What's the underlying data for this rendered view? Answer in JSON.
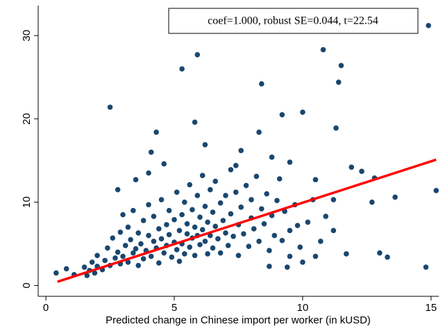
{
  "chart_data": {
    "type": "scatter",
    "xlabel": "Predicted change in Chinese import per worker (in kUSD)",
    "annotation": "coef=1.000, robust SE=0.044, t=22.54",
    "xlim": [
      -0.3,
      15.3
    ],
    "ylim": [
      -1.3,
      33.6
    ],
    "xticks": [
      0,
      5,
      10,
      15
    ],
    "yticks": [
      0,
      10,
      20,
      30
    ],
    "series": [
      {
        "type": "scatter",
        "color": "#1a476f",
        "x": [
          2.5,
          5.3,
          5.9,
          10.8,
          14.9,
          15.2,
          14.8,
          8.4,
          11.5,
          11.4,
          9.2,
          10.0,
          11.3,
          5.8,
          4.3,
          4.1,
          8.3,
          11.9,
          12.3,
          12.7,
          13.6,
          12.8,
          13.3,
          13.0,
          11.7,
          10.5,
          9.5,
          10.0,
          9.4,
          8.7,
          0.4,
          0.8,
          1.1,
          1.6,
          1.9,
          2.8,
          3.5,
          4.0,
          4.6,
          6.2,
          7.6,
          7.4,
          8.8,
          9.5,
          10.5,
          11.2,
          10.9,
          10.7,
          11.2,
          9.8,
          1.5,
          1.7,
          1.8,
          2.0,
          2.0,
          2.2,
          2.3,
          2.4,
          2.5,
          2.6,
          2.7,
          2.8,
          2.9,
          2.9,
          3.0,
          3.0,
          3.1,
          3.2,
          3.2,
          3.3,
          3.4,
          3.4,
          3.5,
          3.6,
          3.6,
          3.7,
          3.8,
          3.8,
          3.9,
          4.0,
          4.0,
          4.1,
          4.2,
          4.2,
          4.3,
          4.4,
          4.4,
          4.5,
          4.5,
          4.6,
          4.7,
          4.7,
          4.8,
          4.8,
          4.9,
          5.0,
          5.0,
          5.1,
          5.1,
          5.2,
          5.2,
          5.3,
          5.3,
          5.4,
          5.4,
          5.5,
          5.5,
          5.6,
          5.6,
          5.7,
          5.7,
          5.8,
          5.8,
          5.9,
          5.9,
          6.0,
          6.0,
          6.1,
          6.1,
          6.2,
          6.2,
          6.3,
          6.3,
          6.4,
          6.4,
          6.5,
          6.5,
          6.6,
          6.6,
          6.7,
          6.8,
          6.8,
          6.9,
          7.0,
          7.0,
          7.1,
          7.2,
          7.2,
          7.3,
          7.4,
          7.5,
          7.5,
          7.6,
          7.7,
          7.8,
          7.9,
          8.0,
          8.0,
          8.1,
          8.2,
          8.3,
          8.4,
          8.5,
          8.6,
          8.7,
          8.8,
          8.9,
          9.0,
          9.1,
          9.2,
          9.3,
          9.5,
          9.7,
          9.9,
          10.2,
          10.4
        ],
        "values": [
          21.4,
          26,
          27.7,
          28.3,
          31.2,
          11.4,
          2.2,
          24.2,
          26.4,
          24.4,
          20.5,
          20.8,
          18.9,
          19.6,
          18.4,
          16,
          18.4,
          14.2,
          13.7,
          10,
          10.6,
          12.9,
          3.4,
          3.9,
          3.8,
          3.5,
          3.5,
          2.8,
          2.2,
          2.3,
          1.5,
          2.0,
          1.3,
          1.2,
          1.5,
          11.5,
          12.7,
          13.5,
          14.6,
          16.9,
          16.2,
          14.4,
          15.4,
          14.8,
          12.7,
          10.3,
          8.3,
          5.3,
          6.6,
          7.2,
          2.2,
          1.8,
          2.8,
          2.3,
          3.6,
          1.9,
          3.0,
          4.5,
          2.4,
          5.7,
          3.3,
          4.0,
          2.6,
          6.4,
          3.5,
          8.5,
          4.8,
          2.8,
          7.0,
          5.5,
          3.9,
          9.0,
          4.4,
          6.3,
          2.4,
          5.0,
          7.8,
          3.2,
          4.2,
          6.0,
          9.7,
          3.5,
          5.3,
          8.3,
          4.5,
          6.8,
          2.7,
          5.6,
          10.3,
          3.9,
          7.3,
          4.8,
          6.1,
          9.0,
          3.4,
          5.2,
          7.9,
          11.2,
          4.3,
          6.6,
          2.9,
          8.5,
          5.0,
          3.8,
          10.0,
          6.2,
          7.4,
          4.6,
          12.1,
          5.7,
          9.1,
          3.6,
          7.0,
          6.0,
          10.8,
          4.9,
          8.2,
          6.7,
          13.2,
          5.3,
          9.5,
          3.8,
          7.6,
          11.5,
          6.0,
          8.8,
          4.5,
          7.1,
          12.5,
          5.6,
          9.9,
          3.9,
          7.8,
          6.3,
          10.8,
          4.8,
          8.6,
          13.9,
          5.9,
          11.2,
          7.3,
          3.6,
          9.4,
          6.2,
          12.0,
          4.7,
          8.1,
          10.3,
          6.8,
          13.1,
          5.3,
          9.2,
          7.4,
          11.0,
          4.2,
          8.4,
          6.0,
          10.2,
          12.8,
          5.4,
          8.9,
          6.6,
          9.7,
          4.6,
          7.6,
          10.3
        ]
      },
      {
        "type": "line",
        "color": "#ff0000",
        "x": [
          0.45,
          15.2
        ],
        "values": [
          0.45,
          15.1
        ]
      }
    ]
  }
}
